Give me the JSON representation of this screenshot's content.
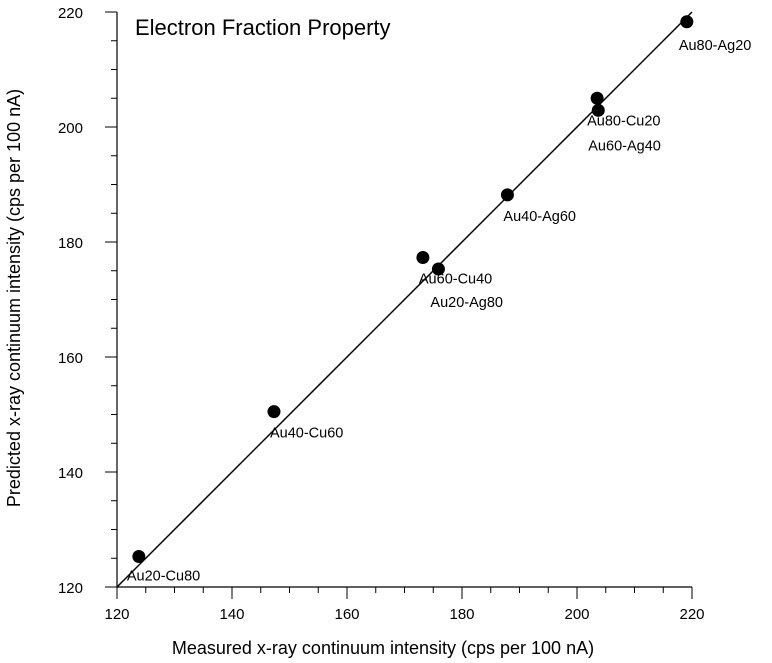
{
  "chart_data": {
    "type": "scatter",
    "title": "Electron Fraction Property",
    "xlabel": "Measured x-ray continuum intensity (cps per 100 nA)",
    "ylabel": "Predicted x-ray continuum intensity (cps per 100 nA)",
    "xlim": [
      120,
      220
    ],
    "ylim": [
      120,
      220
    ],
    "x_ticks": [
      120,
      140,
      160,
      180,
      200,
      220
    ],
    "y_ticks": [
      120,
      140,
      160,
      180,
      200,
      220
    ],
    "grid": false,
    "points": [
      {
        "label": "Au20-Cu80",
        "x": 123.8,
        "y": 125.3
      },
      {
        "label": "Au40-Cu60",
        "x": 147.3,
        "y": 150.5
      },
      {
        "label": "Au60-Cu40",
        "x": 173.2,
        "y": 177.3
      },
      {
        "label": "Au20-Ag80",
        "x": 175.9,
        "y": 175.3
      },
      {
        "label": "Au40-Ag60",
        "x": 187.9,
        "y": 188.2
      },
      {
        "label": "Au80-Cu20",
        "x": 203.5,
        "y": 205.0
      },
      {
        "label": "Au60-Ag40",
        "x": 203.7,
        "y": 202.9
      },
      {
        "label": "Au80-Ag20",
        "x": 219.1,
        "y": 218.3
      }
    ],
    "reference_line": {
      "type": "1:1",
      "from": [
        120,
        120
      ],
      "to": [
        220,
        220
      ]
    }
  }
}
